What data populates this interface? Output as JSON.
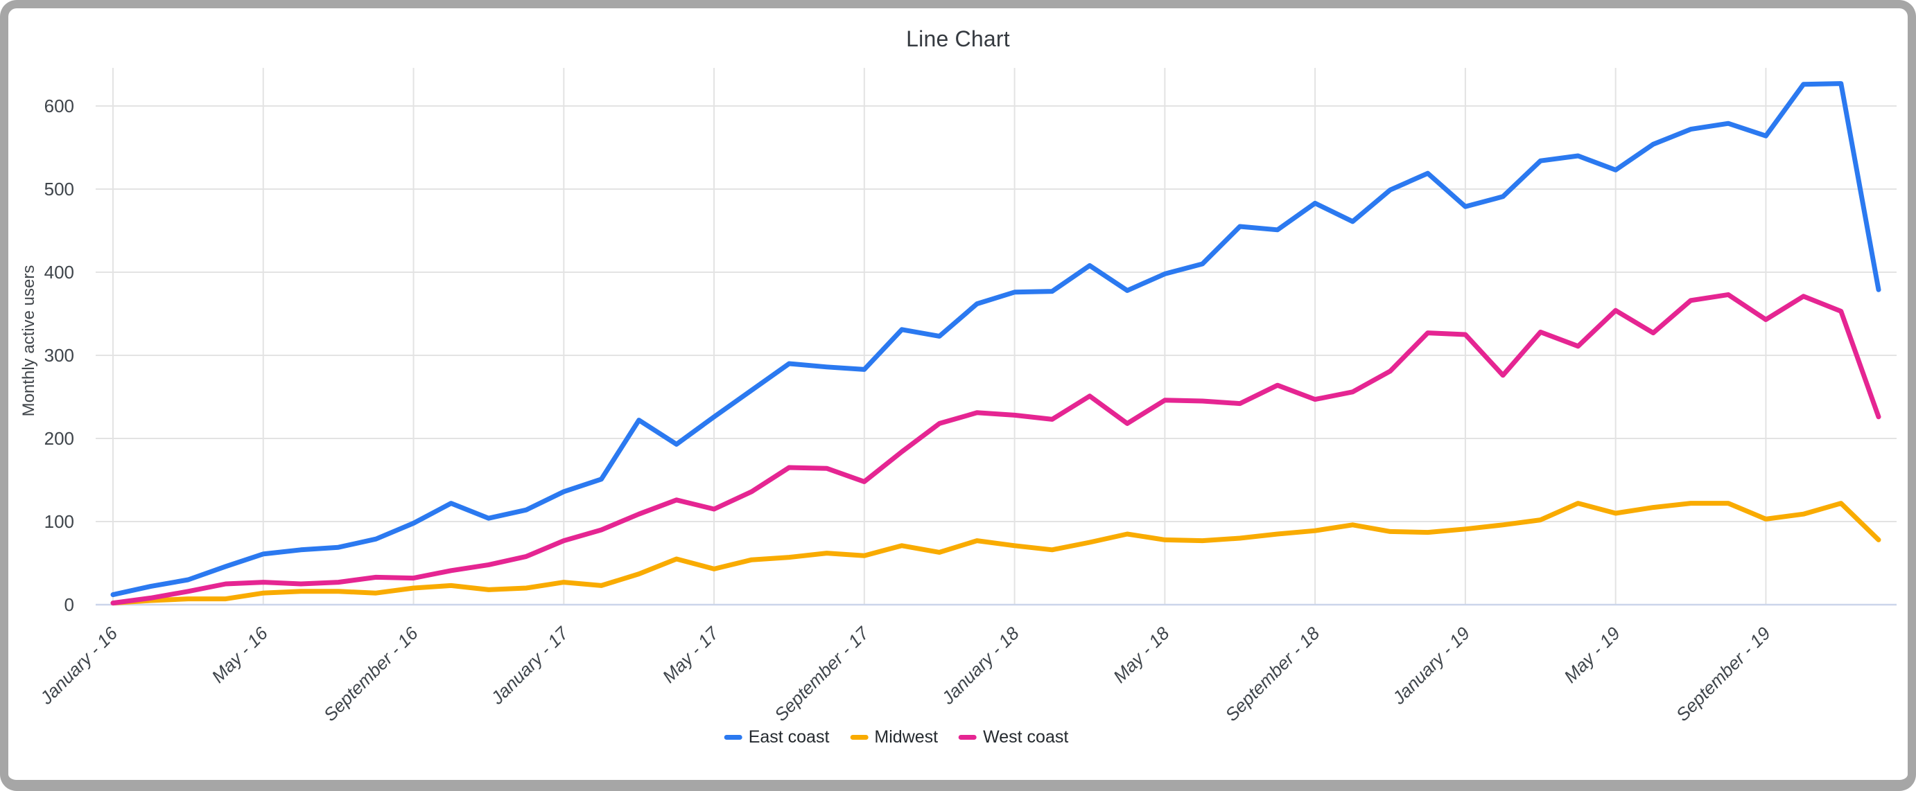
{
  "chart": {
    "title": "Line Chart",
    "y_axis_label": "Monthly active users"
  },
  "chart_data": {
    "type": "line",
    "title": "Line Chart",
    "xlabel": "",
    "ylabel": "Monthly active users",
    "ylim": [
      0,
      650
    ],
    "y_ticks": [
      0,
      100,
      200,
      300,
      400,
      500,
      600
    ],
    "grid": true,
    "legend_position": "bottom",
    "x_tick_every": 4,
    "x_tick_labels": [
      "January - 16",
      "May - 16",
      "September - 16",
      "January - 17",
      "May - 17",
      "September - 17",
      "January - 18",
      "May - 18",
      "September - 18",
      "January - 19",
      "May - 19",
      "September - 19"
    ],
    "months": [
      "January - 16",
      "February - 16",
      "March - 16",
      "April - 16",
      "May - 16",
      "June - 16",
      "July - 16",
      "August - 16",
      "September - 16",
      "October - 16",
      "November - 16",
      "December - 16",
      "January - 17",
      "February - 17",
      "March - 17",
      "April - 17",
      "May - 17",
      "June - 17",
      "July - 17",
      "August - 17",
      "September - 17",
      "October - 17",
      "November - 17",
      "December - 17",
      "January - 18",
      "February - 18",
      "March - 18",
      "April - 18",
      "May - 18",
      "June - 18",
      "July - 18",
      "August - 18",
      "September - 18",
      "October - 18",
      "November - 18",
      "December - 18",
      "January - 19",
      "February - 19",
      "March - 19",
      "April - 19",
      "May - 19",
      "June - 19",
      "July - 19",
      "August - 19",
      "September - 19",
      "October - 19",
      "November - 19",
      "December - 19"
    ],
    "series": [
      {
        "name": "East coast",
        "color": "#2b79f0",
        "values": [
          12,
          22,
          30,
          46,
          61,
          66,
          69,
          79,
          98,
          122,
          104,
          114,
          136,
          151,
          222,
          193,
          226,
          258,
          290,
          286,
          283,
          331,
          323,
          362,
          376,
          377,
          408,
          378,
          398,
          410,
          455,
          451,
          483,
          461,
          499,
          519,
          479,
          491,
          534,
          540,
          523,
          554,
          572,
          579,
          564,
          626,
          627,
          379
        ]
      },
      {
        "name": "Midwest",
        "color": "#f9ab00",
        "values": [
          2,
          5,
          7,
          7,
          14,
          16,
          16,
          14,
          20,
          23,
          18,
          20,
          27,
          23,
          37,
          55,
          43,
          54,
          57,
          62,
          59,
          71,
          63,
          77,
          71,
          66,
          75,
          85,
          78,
          77,
          80,
          85,
          89,
          96,
          88,
          87,
          91,
          96,
          102,
          122,
          110,
          117,
          122,
          122,
          103,
          109,
          122,
          78
        ]
      },
      {
        "name": "West coast",
        "color": "#e52592",
        "values": [
          2,
          8,
          16,
          25,
          27,
          25,
          27,
          33,
          32,
          41,
          48,
          58,
          77,
          90,
          109,
          126,
          115,
          136,
          165,
          164,
          148,
          184,
          218,
          231,
          228,
          223,
          251,
          218,
          246,
          245,
          242,
          264,
          247,
          256,
          281,
          327,
          325,
          276,
          328,
          311,
          354,
          327,
          366,
          373,
          343,
          371,
          353,
          226
        ]
      }
    ],
    "colors": {
      "gridline": "#e3e3e3",
      "baseline": "#cbd5ea",
      "tick_text": "#3f454b",
      "title_text": "#353a40",
      "frame_border": "#a6a6a6"
    }
  }
}
